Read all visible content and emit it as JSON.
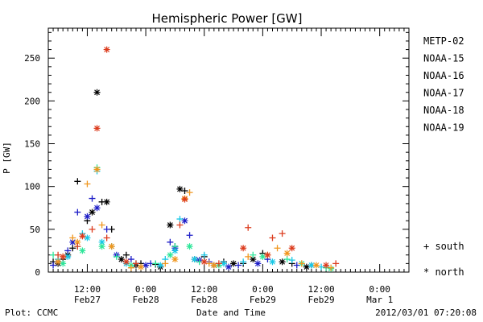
{
  "chart_data": {
    "type": "scatter",
    "title": "Hemispheric Power [GW]",
    "xlabel": "Date and Time",
    "ylabel": "P [GW]",
    "x_unit": "hours",
    "x_range": [
      "2012-02-27 04:00",
      "2012-03-01 06:00"
    ],
    "ylim": [
      0,
      285
    ],
    "y_ticks": [
      0,
      50,
      100,
      150,
      200,
      250
    ],
    "x_ticks": [
      {
        "time": "2012-02-27 12:00",
        "label": "12:00",
        "label2": "Feb27"
      },
      {
        "time": "2012-02-28 00:00",
        "label": "0:00",
        "label2": "Feb28"
      },
      {
        "time": "2012-02-28 12:00",
        "label": "12:00",
        "label2": "Feb28"
      },
      {
        "time": "2012-02-29 00:00",
        "label": "0:00",
        "label2": "Feb29"
      },
      {
        "time": "2012-02-29 12:00",
        "label": "12:00",
        "label2": "Feb29"
      },
      {
        "time": "2012-03-01 00:00",
        "label": "0:00",
        "label2": "Mar 1"
      }
    ],
    "grid": false,
    "legend_position": "right",
    "markers": {
      "south": "+",
      "north": "*"
    },
    "series": [
      {
        "name": "METP-02",
        "color": "#000000",
        "south": [
          [
            "2012-02-27 05:00",
            12
          ],
          [
            "2012-02-27 07:00",
            15
          ],
          [
            "2012-02-27 09:00",
            28
          ],
          [
            "2012-02-27 10:00",
            106
          ],
          [
            "2012-02-27 12:00",
            60
          ],
          [
            "2012-02-27 15:00",
            82
          ],
          [
            "2012-02-27 17:00",
            50
          ],
          [
            "2012-02-27 20:00",
            20
          ],
          [
            "2012-02-27 23:00",
            10
          ],
          [
            "2012-02-28 02:00",
            9
          ],
          [
            "2012-02-28 06:00",
            30
          ],
          [
            "2012-02-28 08:00",
            95
          ],
          [
            "2012-02-28 12:00",
            18
          ],
          [
            "2012-02-28 16:00",
            12
          ],
          [
            "2012-02-28 20:00",
            10
          ],
          [
            "2012-02-29 00:00",
            22
          ],
          [
            "2012-02-29 06:00",
            10
          ],
          [
            "2012-02-29 10:00",
            8
          ]
        ],
        "north": [
          [
            "2012-02-27 06:00",
            10
          ],
          [
            "2012-02-27 08:00",
            20
          ],
          [
            "2012-02-27 13:00",
            70
          ],
          [
            "2012-02-27 14:00",
            210
          ],
          [
            "2012-02-27 16:00",
            82
          ],
          [
            "2012-02-27 19:00",
            15
          ],
          [
            "2012-02-27 22:00",
            8
          ],
          [
            "2012-02-28 03:00",
            6
          ],
          [
            "2012-02-28 05:00",
            55
          ],
          [
            "2012-02-28 07:00",
            97
          ],
          [
            "2012-02-28 10:00",
            15
          ],
          [
            "2012-02-28 14:00",
            8
          ],
          [
            "2012-02-28 18:00",
            10
          ],
          [
            "2012-02-28 22:00",
            15
          ],
          [
            "2012-02-29 04:00",
            12
          ],
          [
            "2012-02-29 09:00",
            6
          ]
        ]
      },
      {
        "name": "NOAA-15",
        "color": "#1f1fc8",
        "south": [
          [
            "2012-02-27 05:00",
            8
          ],
          [
            "2012-02-27 08:00",
            25
          ],
          [
            "2012-02-27 10:00",
            70
          ],
          [
            "2012-02-27 13:00",
            86
          ],
          [
            "2012-02-27 16:00",
            50
          ],
          [
            "2012-02-27 21:00",
            15
          ],
          [
            "2012-02-28 01:00",
            10
          ],
          [
            "2012-02-28 05:00",
            35
          ],
          [
            "2012-02-28 09:00",
            43
          ],
          [
            "2012-02-28 13:00",
            12
          ],
          [
            "2012-02-28 19:00",
            8
          ],
          [
            "2012-02-29 01:00",
            15
          ],
          [
            "2012-02-29 07:00",
            8
          ]
        ],
        "north": [
          [
            "2012-02-27 06:00",
            12
          ],
          [
            "2012-02-27 09:00",
            35
          ],
          [
            "2012-02-27 12:00",
            65
          ],
          [
            "2012-02-27 14:00",
            75
          ],
          [
            "2012-02-27 18:00",
            20
          ],
          [
            "2012-02-28 00:00",
            8
          ],
          [
            "2012-02-28 06:00",
            28
          ],
          [
            "2012-02-28 08:00",
            60
          ],
          [
            "2012-02-28 11:00",
            14
          ],
          [
            "2012-02-28 17:00",
            6
          ],
          [
            "2012-02-28 23:00",
            10
          ]
        ]
      },
      {
        "name": "NOAA-16",
        "color": "#19c8e6",
        "south": [
          [
            "2012-02-27 06:00",
            15
          ],
          [
            "2012-02-27 11:00",
            45
          ],
          [
            "2012-02-27 14:00",
            118
          ],
          [
            "2012-02-27 17:00",
            30
          ],
          [
            "2012-02-27 22:00",
            10
          ],
          [
            "2012-02-28 04:00",
            15
          ],
          [
            "2012-02-28 07:00",
            62
          ],
          [
            "2012-02-28 12:00",
            20
          ],
          [
            "2012-02-28 20:00",
            12
          ],
          [
            "2012-02-29 06:00",
            14
          ],
          [
            "2012-02-29 12:00",
            6
          ]
        ],
        "north": [
          [
            "2012-02-27 08:00",
            18
          ],
          [
            "2012-02-27 12:00",
            40
          ],
          [
            "2012-02-27 15:00",
            35
          ],
          [
            "2012-02-27 20:00",
            10
          ],
          [
            "2012-02-28 03:00",
            8
          ],
          [
            "2012-02-28 06:00",
            25
          ],
          [
            "2012-02-28 10:00",
            15
          ],
          [
            "2012-02-28 16:00",
            10
          ],
          [
            "2012-02-29 02:00",
            12
          ],
          [
            "2012-02-29 10:00",
            8
          ]
        ]
      },
      {
        "name": "NOAA-17",
        "color": "#2ee69a",
        "south": [
          [
            "2012-02-27 05:00",
            20
          ],
          [
            "2012-02-27 10:00",
            30
          ],
          [
            "2012-02-27 14:00",
            122
          ],
          [
            "2012-02-27 18:00",
            18
          ],
          [
            "2012-02-28 02:00",
            10
          ],
          [
            "2012-02-28 06:00",
            30
          ],
          [
            "2012-02-28 11:00",
            12
          ],
          [
            "2012-02-28 22:00",
            20
          ],
          [
            "2012-02-29 05:00",
            15
          ],
          [
            "2012-02-29 13:00",
            5
          ]
        ],
        "north": [
          [
            "2012-02-27 07:00",
            10
          ],
          [
            "2012-02-27 11:00",
            25
          ],
          [
            "2012-02-27 15:00",
            30
          ],
          [
            "2012-02-27 21:00",
            8
          ],
          [
            "2012-02-28 05:00",
            20
          ],
          [
            "2012-02-28 09:00",
            30
          ],
          [
            "2012-02-28 15:00",
            8
          ],
          [
            "2012-02-29 00:00",
            18
          ],
          [
            "2012-02-29 08:00",
            10
          ],
          [
            "2012-02-29 14:00",
            4
          ]
        ]
      },
      {
        "name": "NOAA-18",
        "color": "#f0961e",
        "south": [
          [
            "2012-02-27 07:00",
            18
          ],
          [
            "2012-02-27 09:00",
            40
          ],
          [
            "2012-02-27 12:00",
            103
          ],
          [
            "2012-02-27 15:00",
            55
          ],
          [
            "2012-02-27 21:00",
            5
          ],
          [
            "2012-02-28 04:00",
            10
          ],
          [
            "2012-02-28 09:00",
            93
          ],
          [
            "2012-02-28 13:00",
            10
          ],
          [
            "2012-02-28 21:00",
            18
          ],
          [
            "2012-02-29 03:00",
            28
          ],
          [
            "2012-02-29 08:00",
            10
          ],
          [
            "2012-02-29 14:00",
            5
          ]
        ],
        "north": [
          [
            "2012-02-27 06:00",
            12
          ],
          [
            "2012-02-27 10:00",
            35
          ],
          [
            "2012-02-27 14:00",
            120
          ],
          [
            "2012-02-27 17:00",
            30
          ],
          [
            "2012-02-27 23:00",
            6
          ],
          [
            "2012-02-28 06:00",
            15
          ],
          [
            "2012-02-28 08:00",
            86
          ],
          [
            "2012-02-28 14:00",
            8
          ],
          [
            "2012-02-29 01:00",
            20
          ],
          [
            "2012-02-29 05:00",
            22
          ],
          [
            "2012-02-29 11:00",
            8
          ]
        ]
      },
      {
        "name": "NOAA-19",
        "color": "#dc3c1e",
        "south": [
          [
            "2012-02-27 06:00",
            20
          ],
          [
            "2012-02-27 10:00",
            30
          ],
          [
            "2012-02-27 13:00",
            50
          ],
          [
            "2012-02-27 16:00",
            40
          ],
          [
            "2012-02-27 22:00",
            10
          ],
          [
            "2012-02-28 07:00",
            55
          ],
          [
            "2012-02-28 15:00",
            10
          ],
          [
            "2012-02-28 21:00",
            52
          ],
          [
            "2012-02-29 02:00",
            40
          ],
          [
            "2012-02-29 04:00",
            45
          ],
          [
            "2012-02-29 15:00",
            10
          ]
        ],
        "north": [
          [
            "2012-02-27 07:00",
            18
          ],
          [
            "2012-02-27 11:00",
            42
          ],
          [
            "2012-02-27 14:00",
            168
          ],
          [
            "2012-02-27 16:00",
            260
          ],
          [
            "2012-02-27 20:00",
            12
          ],
          [
            "2012-02-28 08:00",
            85
          ],
          [
            "2012-02-28 12:00",
            12
          ],
          [
            "2012-02-28 20:00",
            28
          ],
          [
            "2012-02-29 01:00",
            20
          ],
          [
            "2012-02-29 06:00",
            28
          ],
          [
            "2012-02-29 13:00",
            8
          ]
        ]
      }
    ]
  },
  "legend": {
    "south_label": "+ south",
    "north_label": "* north"
  },
  "footer": {
    "left": "Plot: CCMC",
    "right": "2012/03/01 07:20:08"
  }
}
